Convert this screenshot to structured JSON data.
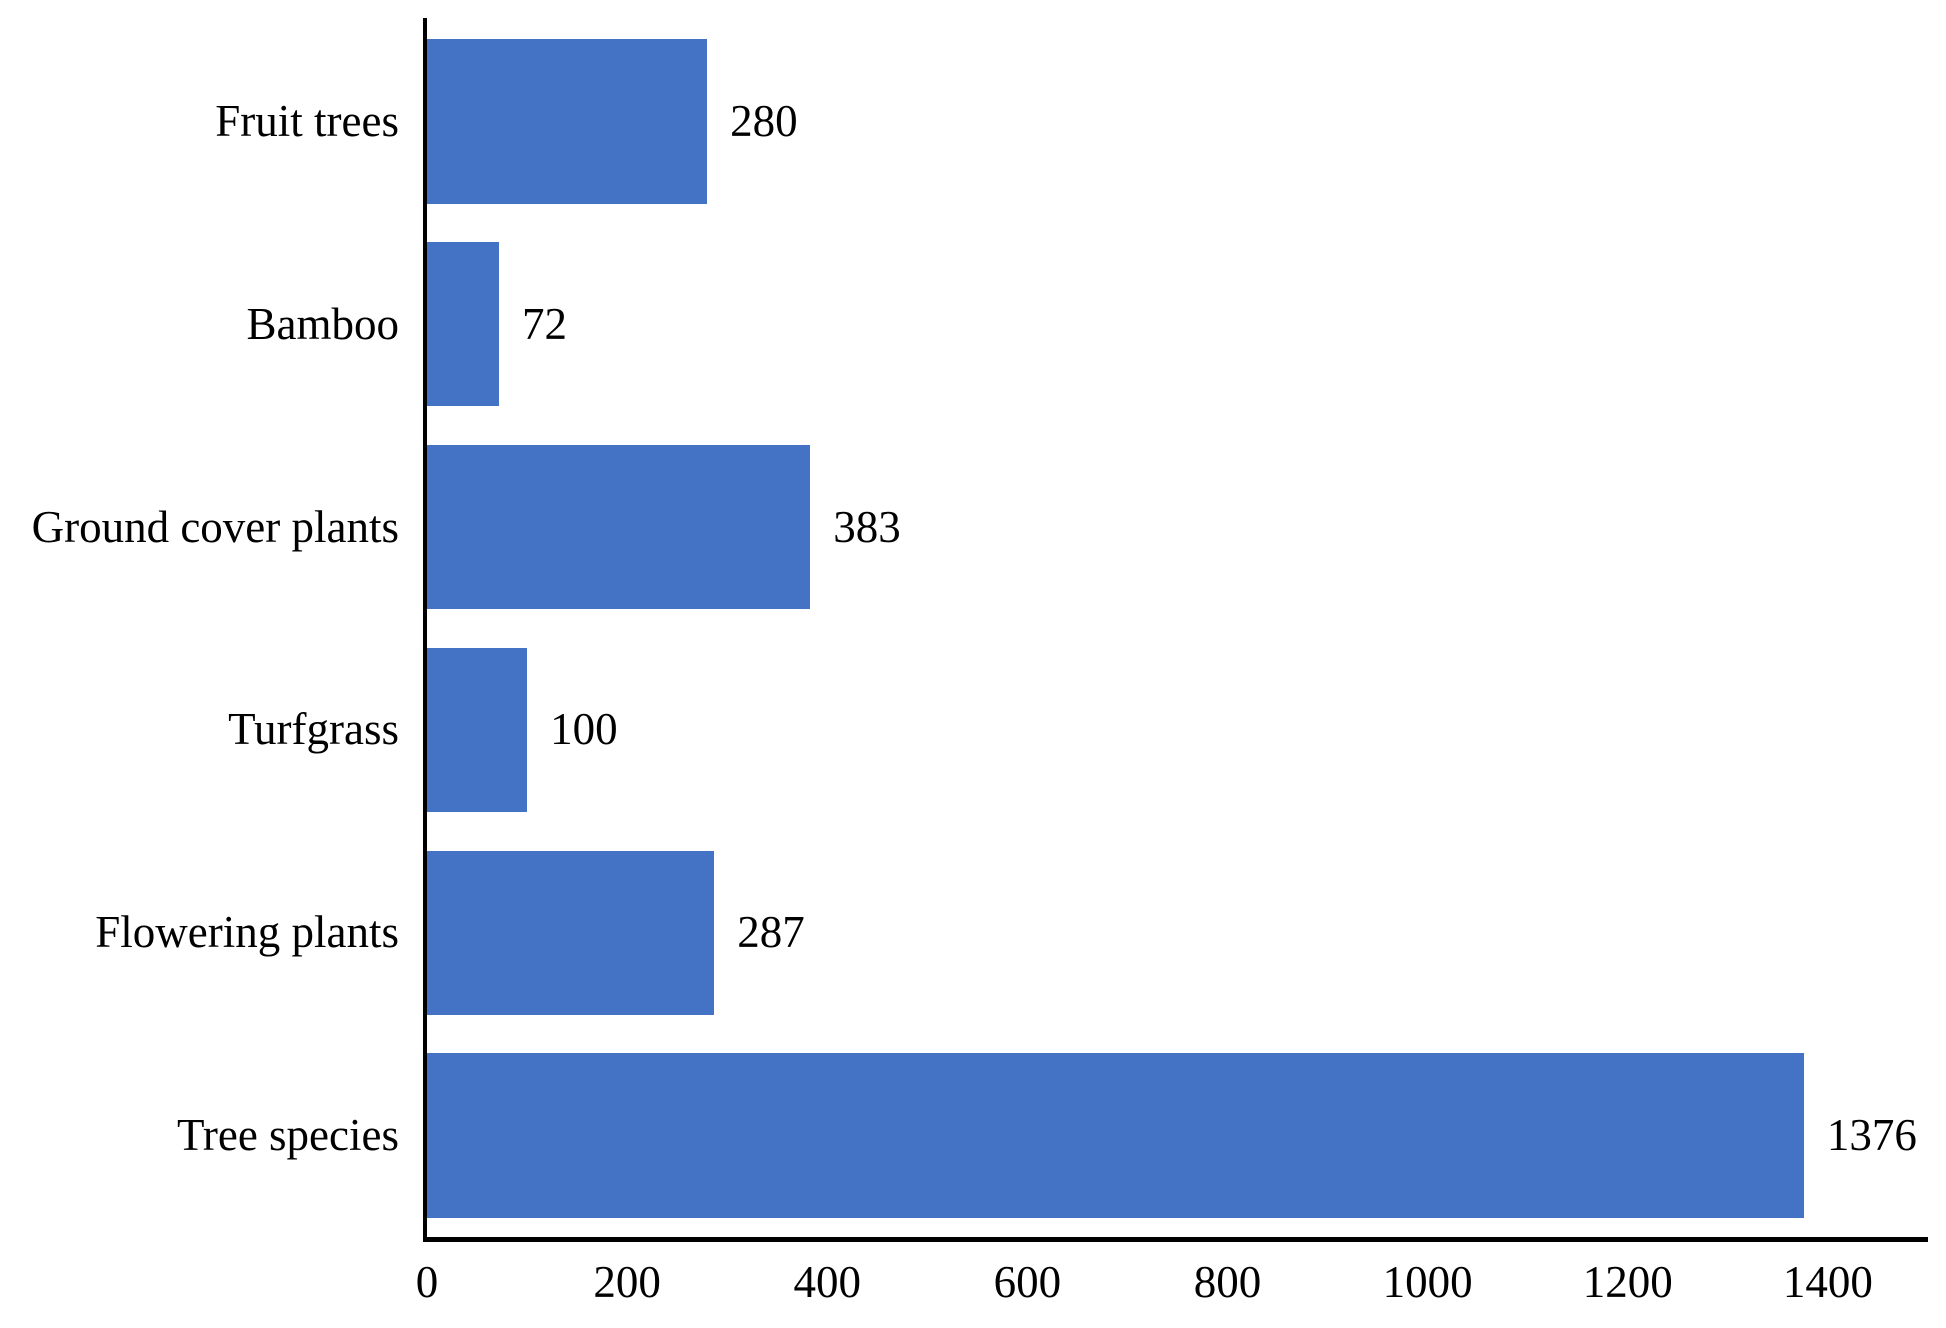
{
  "chart_data": {
    "type": "bar",
    "orientation": "horizontal",
    "title": "",
    "xlabel": "",
    "ylabel": "",
    "categories": [
      "Fruit trees",
      "Bamboo",
      "Ground cover plants",
      "Turfgrass",
      "Flowering plants",
      "Tree species"
    ],
    "values": [
      280,
      72,
      383,
      100,
      287,
      1376
    ],
    "data_labels": [
      "280",
      "72",
      "383",
      "100",
      "287",
      "1376"
    ],
    "x_ticks": [
      0,
      200,
      400,
      600,
      800,
      1000,
      1200,
      1400
    ],
    "x_tick_labels": [
      "0",
      "200",
      "400",
      "600",
      "800",
      "1000",
      "1200",
      "1400"
    ],
    "xlim": [
      0,
      1500
    ],
    "grid": false,
    "legend": false,
    "bar_color": "#4472C4",
    "axis_color": "#000000",
    "text_color": "#000000",
    "background_color": "#FFFFFF"
  }
}
